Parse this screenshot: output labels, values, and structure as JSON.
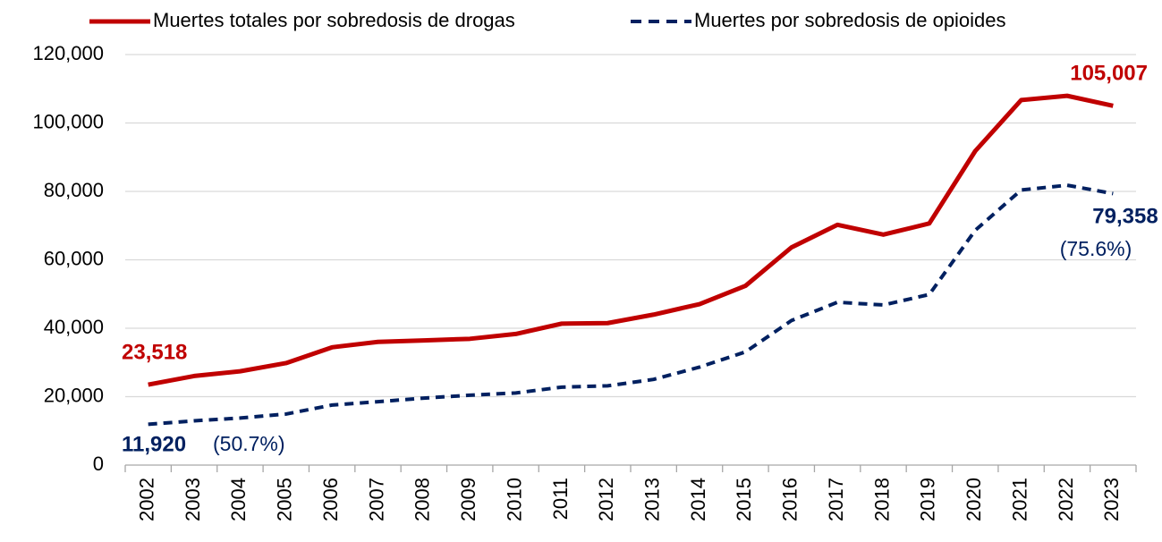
{
  "chart_data": {
    "type": "line",
    "categories": [
      "2002",
      "2003",
      "2004",
      "2005",
      "2006",
      "2007",
      "2008",
      "2009",
      "2010",
      "2011",
      "2012",
      "2013",
      "2014",
      "2015",
      "2016",
      "2017",
      "2018",
      "2019",
      "2020",
      "2021",
      "2022",
      "2023"
    ],
    "series": [
      {
        "name": "Muertes totales por sobredosis de drogas",
        "color": "#c00000",
        "dash": false,
        "values": [
          23518,
          26040,
          27424,
          29813,
          34425,
          36010,
          36450,
          36909,
          38329,
          41340,
          41502,
          43982,
          47055,
          52404,
          63632,
          70237,
          67367,
          70630,
          91799,
          106699,
          107941,
          105007
        ],
        "value_labels": {
          "0": "23,518",
          "21": "105,007"
        }
      },
      {
        "name": "Muertes por sobredosis de opioides",
        "color": "#002060",
        "dash": true,
        "values": [
          11920,
          12940,
          13756,
          14918,
          17545,
          18516,
          19582,
          20422,
          21089,
          22784,
          23166,
          25052,
          28647,
          33091,
          42249,
          47600,
          46802,
          49860,
          68630,
          80411,
          81806,
          79358
        ],
        "value_labels": {
          "0": "11,920",
          "21": "79,358"
        }
      }
    ],
    "annotations": [
      "(50.7%)",
      "(75.6%)"
    ],
    "ylim": [
      0,
      120000
    ],
    "yticks": [
      0,
      {
        "value": 20000,
        "label": "20,000"
      },
      {
        "value": 40000,
        "label": "40,000"
      },
      {
        "value": 60000,
        "label": "60,000"
      },
      {
        "value": 80000,
        "label": "80,000"
      },
      {
        "value": 100000,
        "label": "100,000"
      },
      {
        "value": 120000,
        "label": "120,000"
      }
    ],
    "grid": true,
    "legend": "top"
  }
}
